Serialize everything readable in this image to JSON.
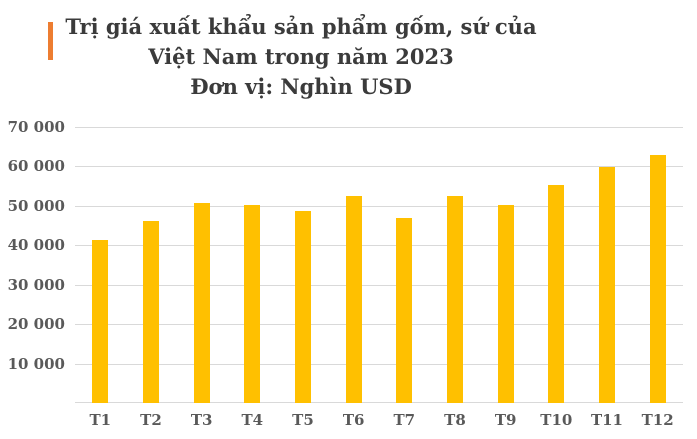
{
  "title": {
    "line1": "Trị giá xuất khẩu sản phẩm gốm, sứ của",
    "line2": "Việt Nam trong năm 2023",
    "line3": "Đơn vị: Nghìn USD"
  },
  "colors": {
    "bar": "#FFC000",
    "title_accent": "#ED7D31",
    "title_text": "#3B3B3B",
    "axis_text": "#595959",
    "gridline": "#D9D9D9"
  },
  "chart_data": {
    "type": "bar",
    "title": "Trị giá xuất khẩu sản phẩm gốm, sứ của Việt Nam trong năm 2023",
    "unit_label": "Đơn vị: Nghìn USD",
    "categories": [
      "T1",
      "T2",
      "T3",
      "T4",
      "T5",
      "T6",
      "T7",
      "T8",
      "T9",
      "T10",
      "T11",
      "T12"
    ],
    "values": [
      41300,
      46100,
      50800,
      50100,
      48700,
      52400,
      47000,
      52400,
      50300,
      55200,
      59900,
      62800
    ],
    "ylim": [
      0,
      70000
    ],
    "yticks": [
      10000,
      20000,
      30000,
      40000,
      50000,
      60000,
      70000
    ],
    "ytick_labels": [
      "10 000",
      "20 000",
      "30 000",
      "40 000",
      "50 000",
      "60 000",
      "70 000"
    ],
    "grid": true,
    "legend": false,
    "xlabel": "",
    "ylabel": ""
  }
}
